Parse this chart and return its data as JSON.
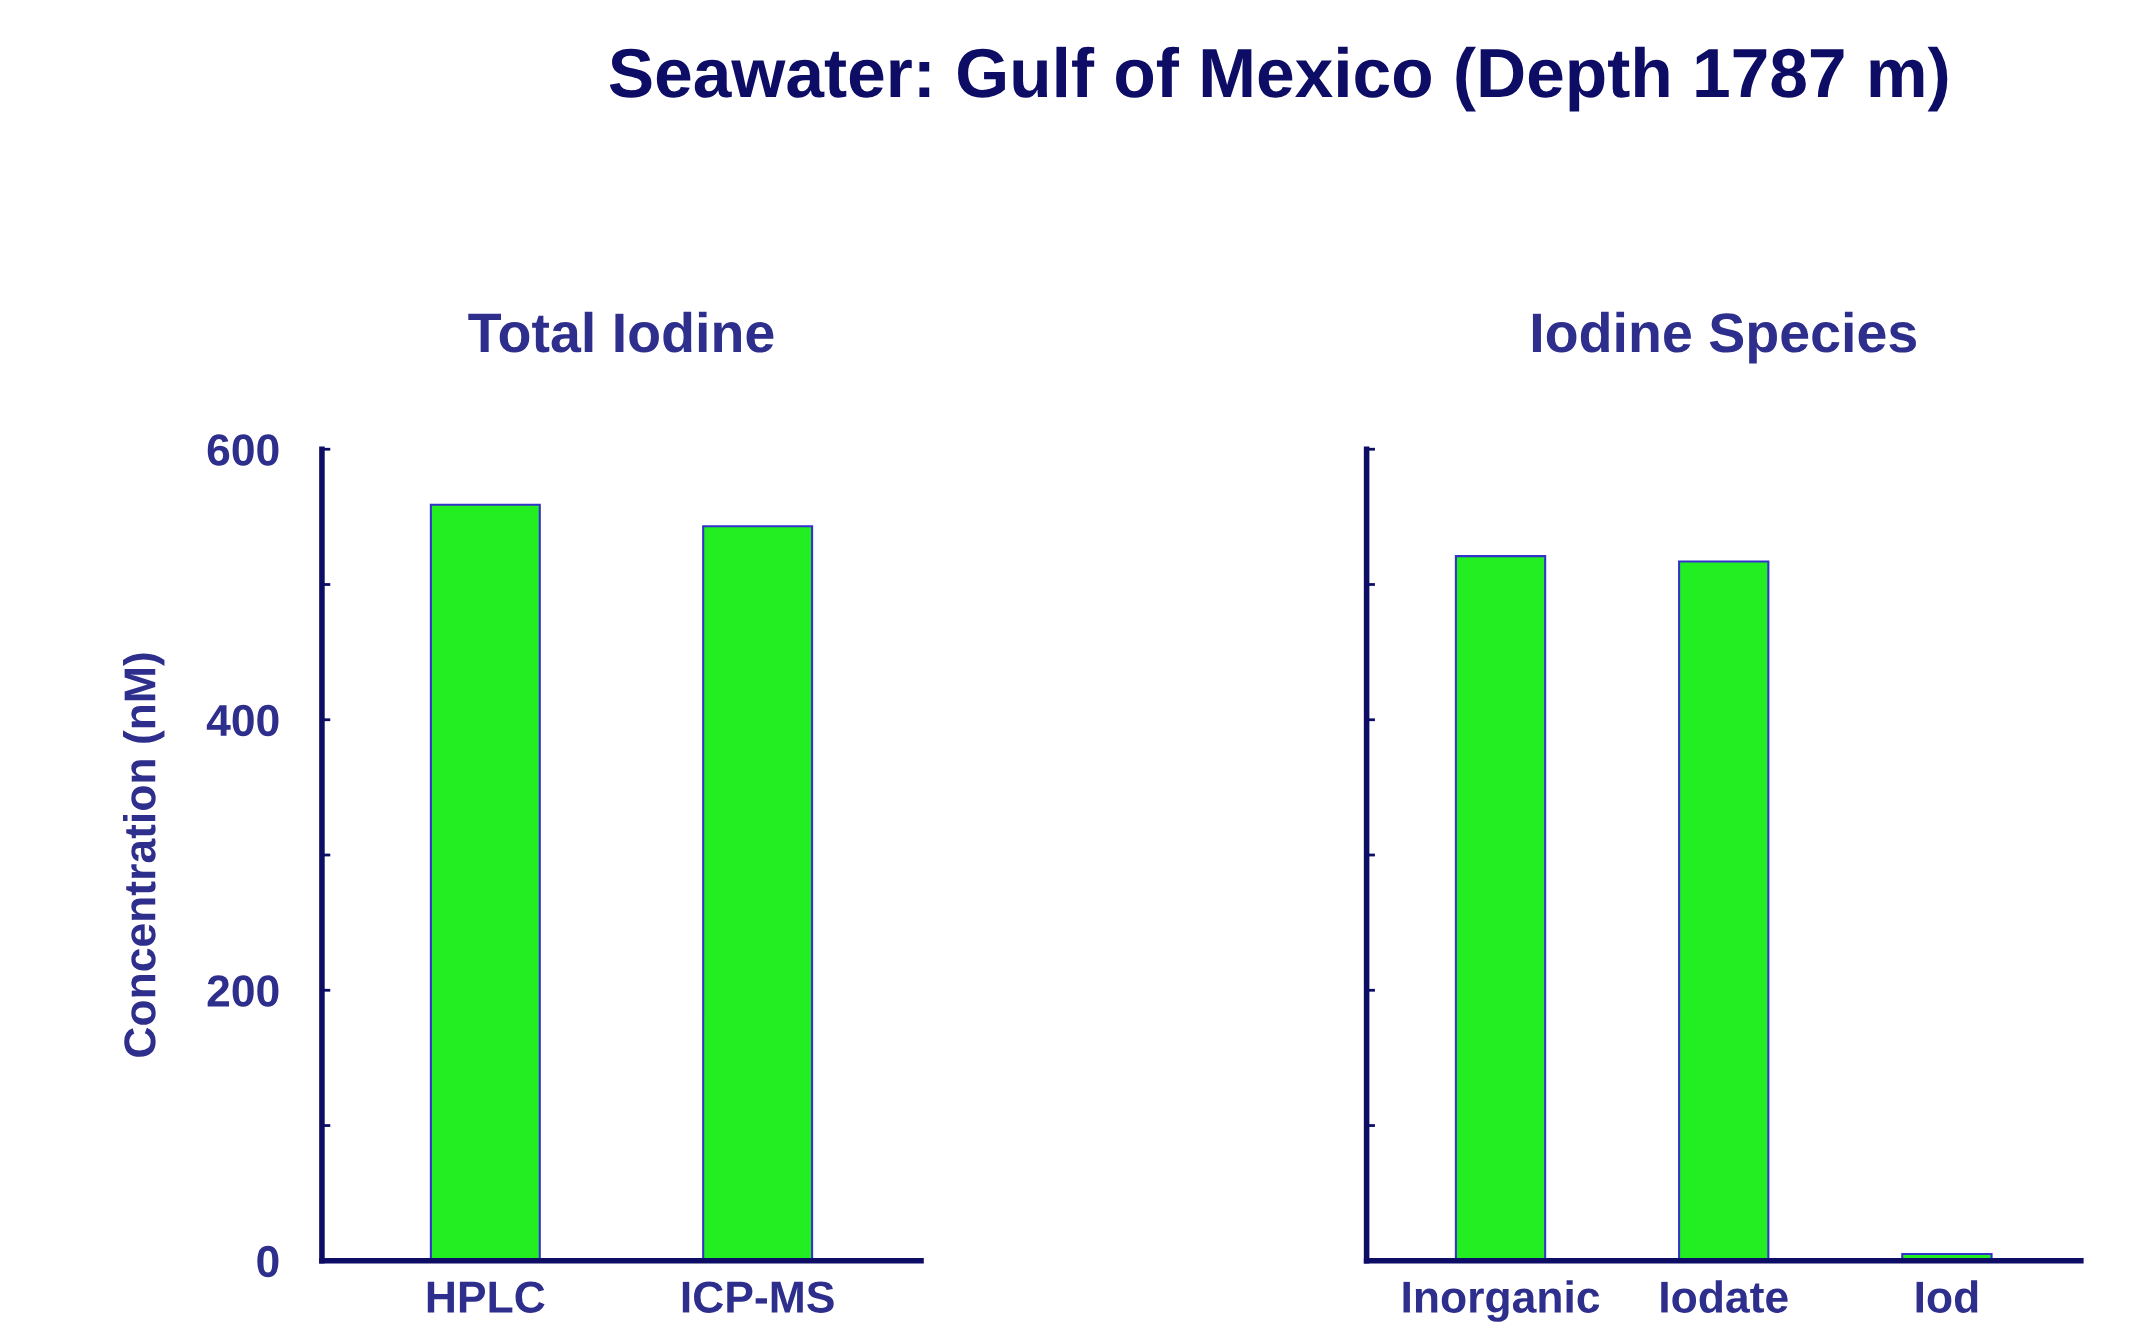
{
  "chart_data": [
    {
      "type": "bar",
      "title": "Seawater: Gulf of Mexico (Depth 1787 m)",
      "subtitle": "Total Iodine",
      "ylabel": "Concentration (nM)",
      "categories": [
        "HPLC",
        "ICP-MS"
      ],
      "values": [
        559,
        543
      ],
      "color": "#22ee22",
      "ylim": [
        0,
        600
      ],
      "yticks": [
        0,
        {
          "value": 100,
          "label": null
        },
        200,
        {
          "value": 300,
          "label": null
        },
        400,
        {
          "value": 500,
          "label": null
        },
        600
      ],
      "grid": false,
      "legend": false
    },
    {
      "type": "bar",
      "subtitle": "Iodine Species",
      "categories": [
        "Inorganic",
        "Iodate",
        "Iod"
      ],
      "values": [
        521,
        517,
        5
      ],
      "color": "#22ee22",
      "ylim": [
        0,
        600
      ],
      "yticks": [
        {
          "value": 0,
          "label": null
        },
        {
          "value": 100,
          "label": null
        },
        {
          "value": 200,
          "label": null
        },
        {
          "value": 300,
          "label": null
        },
        {
          "value": 400,
          "label": null
        },
        {
          "value": 500,
          "label": null
        },
        {
          "value": 600,
          "label": null
        }
      ],
      "tick_labels": "x",
      "grid": false,
      "legend": false
    }
  ]
}
